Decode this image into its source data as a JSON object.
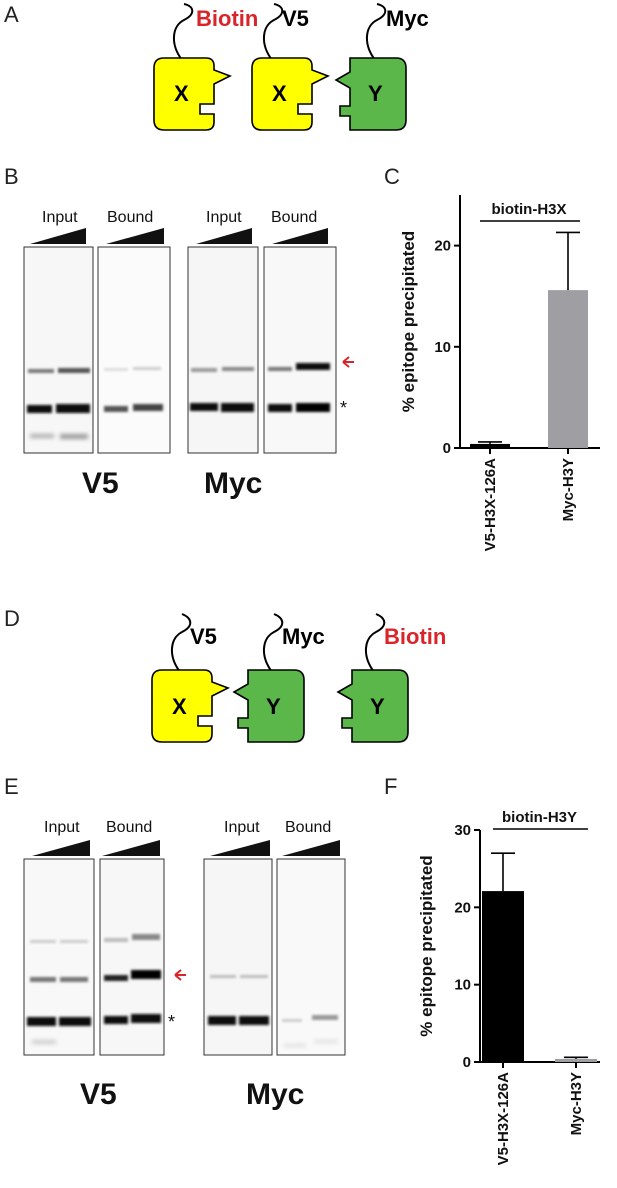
{
  "panels": {
    "A": {
      "letter": "A"
    },
    "B": {
      "letter": "B"
    },
    "C": {
      "letter": "C"
    },
    "D": {
      "letter": "D"
    },
    "E": {
      "letter": "E"
    },
    "F": {
      "letter": "F"
    }
  },
  "schematic_A": {
    "tag1": "Biotin",
    "tag2": "V5",
    "tag3": "Myc",
    "prot1": "X",
    "prot2": "X",
    "prot3": "Y"
  },
  "schematic_D": {
    "tag1": "V5",
    "tag2": "Myc",
    "tag3": "Biotin",
    "prot1": "X",
    "prot2": "Y",
    "prot3": "Y"
  },
  "blot_B": {
    "input": "Input",
    "bound": "Bound",
    "input2": "Input",
    "bound2": "Bound",
    "left_label": "V5",
    "right_label": "Myc",
    "band_marker": "*"
  },
  "blot_E": {
    "input": "Input",
    "bound": "Bound",
    "input2": "Input",
    "bound2": "Bound",
    "left_label": "V5",
    "right_label": "Myc",
    "band_marker": "*"
  },
  "colors": {
    "biotin_red": "#d9252a",
    "yellow": "#ffff00",
    "green": "#5bb74a",
    "black_bar": "#000000",
    "grey_bar": "#9e9ea3"
  },
  "chart_data": [
    {
      "type": "bar",
      "title": "biotin-H3X",
      "ylabel": "% epitope precipitated",
      "categories": [
        "V5-H3X-126A",
        "Myc-H3Y"
      ],
      "values": [
        0.4,
        15.6
      ],
      "errors": [
        0.2,
        5.7
      ],
      "ylim": [
        0,
        25
      ],
      "yticks": [
        0,
        10,
        20
      ],
      "bar_colors": [
        "#000000",
        "#9e9ea3"
      ]
    },
    {
      "type": "bar",
      "title": "biotin-H3Y",
      "ylabel": "% epitope precipitated",
      "categories": [
        "V5-H3X-126A",
        "Myc-H3Y"
      ],
      "values": [
        22.1,
        0.4
      ],
      "errors": [
        4.9,
        0.2
      ],
      "ylim": [
        0,
        30
      ],
      "yticks": [
        0,
        10,
        20,
        30
      ],
      "bar_colors": [
        "#000000",
        "#9e9ea3"
      ]
    }
  ]
}
